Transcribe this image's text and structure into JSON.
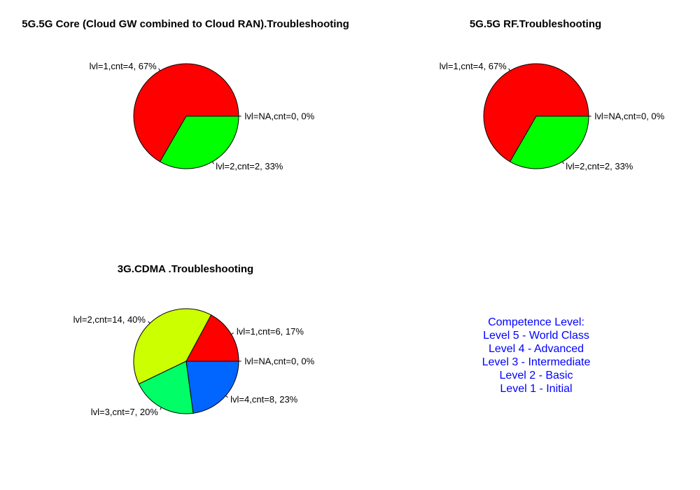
{
  "chart_data": [
    {
      "type": "pie",
      "title": "5G.5G Core (Cloud GW combined to Cloud RAN).Troubleshooting",
      "slices": [
        {
          "label": "lvl=NA,cnt=0, 0%",
          "value": 0,
          "color": "#000000"
        },
        {
          "label": "lvl=1,cnt=4, 67%",
          "value": 4,
          "color": "#ff0000"
        },
        {
          "label": "lvl=2,cnt=2, 33%",
          "value": 2,
          "color": "#00ff00"
        }
      ]
    },
    {
      "type": "pie",
      "title": "5G.5G RF.Troubleshooting",
      "slices": [
        {
          "label": "lvl=NA,cnt=0, 0%",
          "value": 0,
          "color": "#000000"
        },
        {
          "label": "lvl=1,cnt=4, 67%",
          "value": 4,
          "color": "#ff0000"
        },
        {
          "label": "lvl=2,cnt=2, 33%",
          "value": 2,
          "color": "#00ff00"
        }
      ]
    },
    {
      "type": "pie",
      "title": "3G.CDMA .Troubleshooting",
      "slices": [
        {
          "label": "lvl=NA,cnt=0, 0%",
          "value": 0,
          "color": "#000000"
        },
        {
          "label": "lvl=1,cnt=6, 17%",
          "value": 6,
          "color": "#ff0000"
        },
        {
          "label": "lvl=2,cnt=14, 40%",
          "value": 14,
          "color": "#ccff00"
        },
        {
          "label": "lvl=3,cnt=7, 20%",
          "value": 7,
          "color": "#00ff66"
        },
        {
          "label": "lvl=4,cnt=8, 23%",
          "value": 8,
          "color": "#0066ff"
        }
      ]
    }
  ],
  "legend": {
    "color": "#0000ff",
    "lines": [
      "Competence Level:",
      "Level 5 - World Class",
      "Level 4 - Advanced",
      "Level 3 - Intermediate",
      "Level 2 - Basic",
      "Level 1 - Initial"
    ]
  }
}
